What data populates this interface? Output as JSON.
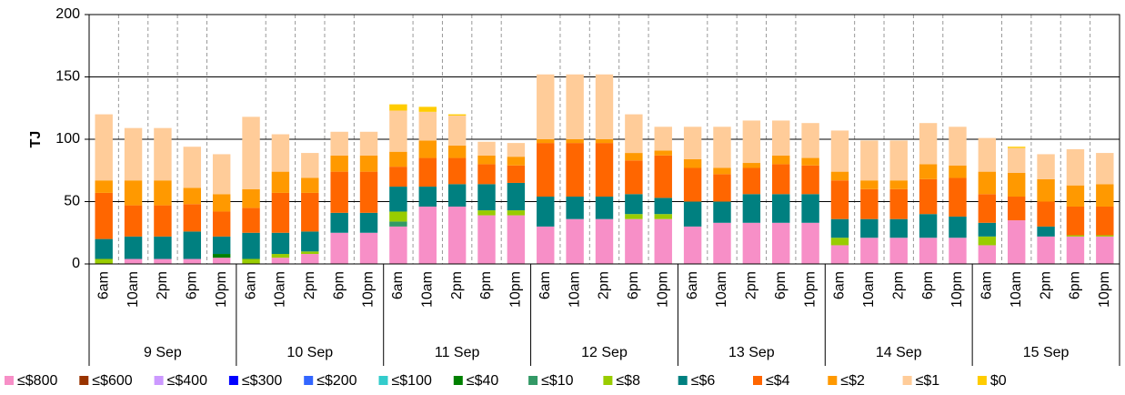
{
  "chart_data": {
    "type": "stacked-bar",
    "y_label": "TJ",
    "categories": [
      "6am",
      "10am",
      "2pm",
      "6pm",
      "10pm",
      "6am",
      "10am",
      "2pm",
      "6pm",
      "10pm",
      "6am",
      "10am",
      "2pm",
      "6pm",
      "10pm",
      "6am",
      "10am",
      "2pm",
      "6pm",
      "10pm",
      "6am",
      "10am",
      "2pm",
      "6pm",
      "10pm",
      "6am",
      "10am",
      "2pm",
      "6pm",
      "10pm",
      "6am",
      "10am",
      "2pm",
      "6pm",
      "10pm"
    ],
    "groups": [
      "9 Sep",
      "10 Sep",
      "11 Sep",
      "12 Sep",
      "13 Sep",
      "14 Sep",
      "15 Sep"
    ],
    "ylim": [
      0,
      200
    ],
    "yticks": [
      0,
      50,
      100,
      150,
      200
    ],
    "grid": true,
    "series": [
      {
        "name": "≤$800",
        "color": "#f78fc7",
        "values": [
          0,
          4,
          4,
          4,
          5,
          0,
          5,
          8,
          25,
          25,
          30,
          46,
          46,
          39,
          39,
          30,
          36,
          36,
          36,
          36,
          30,
          33,
          33,
          33,
          33,
          15,
          21,
          21,
          21,
          21,
          15,
          35,
          22,
          22,
          22
        ]
      },
      {
        "name": "≤$600",
        "color": "#993300",
        "values": [
          0,
          0,
          0,
          0,
          0,
          0,
          0,
          0,
          0,
          0,
          0,
          0,
          0,
          0,
          0,
          0,
          0,
          0,
          0,
          0,
          0,
          0,
          0,
          0,
          0,
          0,
          0,
          0,
          0,
          0,
          0,
          0,
          0,
          0,
          0
        ]
      },
      {
        "name": "≤$400",
        "color": "#cc99ff",
        "values": [
          0,
          0,
          0,
          0,
          0,
          0,
          0,
          0,
          0,
          0,
          0,
          0,
          0,
          0,
          0,
          0,
          0,
          0,
          0,
          0,
          0,
          0,
          0,
          0,
          0,
          0,
          0,
          0,
          0,
          0,
          0,
          0,
          0,
          0,
          0
        ]
      },
      {
        "name": "≤$300",
        "color": "#0000ff",
        "values": [
          0,
          0,
          0,
          0,
          0,
          0,
          0,
          0,
          0,
          0,
          0,
          0,
          0,
          0,
          0,
          0,
          0,
          0,
          0,
          0,
          0,
          0,
          0,
          0,
          0,
          0,
          0,
          0,
          0,
          0,
          0,
          0,
          0,
          0,
          0
        ]
      },
      {
        "name": "≤$200",
        "color": "#3366ff",
        "values": [
          0,
          0,
          0,
          0,
          0,
          0,
          0,
          0,
          0,
          0,
          0,
          0,
          0,
          0,
          0,
          0,
          0,
          0,
          0,
          0,
          0,
          0,
          0,
          0,
          0,
          0,
          0,
          0,
          0,
          0,
          0,
          0,
          0,
          0,
          0
        ]
      },
      {
        "name": "≤$100",
        "color": "#33cccc",
        "values": [
          0,
          0,
          0,
          0,
          0,
          0,
          0,
          0,
          0,
          0,
          0,
          0,
          0,
          0,
          0,
          0,
          0,
          0,
          0,
          0,
          0,
          0,
          0,
          0,
          0,
          0,
          0,
          0,
          0,
          0,
          0,
          0,
          0,
          0,
          0
        ]
      },
      {
        "name": "≤$40",
        "color": "#008000",
        "values": [
          0,
          0,
          0,
          0,
          3,
          0,
          0,
          0,
          0,
          0,
          0,
          0,
          0,
          0,
          0,
          0,
          0,
          0,
          0,
          0,
          0,
          0,
          0,
          0,
          0,
          0,
          0,
          0,
          0,
          0,
          0,
          0,
          0,
          0,
          0
        ]
      },
      {
        "name": "≤$10",
        "color": "#339966",
        "values": [
          0,
          0,
          0,
          0,
          0,
          0,
          0,
          0,
          0,
          0,
          4,
          0,
          0,
          0,
          0,
          0,
          0,
          0,
          0,
          0,
          0,
          0,
          0,
          0,
          0,
          0,
          0,
          0,
          0,
          0,
          0,
          0,
          0,
          0,
          0
        ]
      },
      {
        "name": "≤$8",
        "color": "#99cc00",
        "values": [
          4,
          0,
          0,
          0,
          0,
          4,
          3,
          2,
          0,
          0,
          8,
          0,
          0,
          4,
          4,
          0,
          0,
          0,
          4,
          4,
          0,
          0,
          0,
          0,
          0,
          6,
          0,
          0,
          0,
          0,
          7,
          0,
          0,
          1,
          1
        ]
      },
      {
        "name": "≤$6",
        "color": "#008080",
        "values": [
          16,
          18,
          18,
          22,
          14,
          21,
          17,
          16,
          16,
          16,
          20,
          16,
          18,
          21,
          22,
          24,
          18,
          18,
          16,
          13,
          20,
          17,
          23,
          23,
          23,
          15,
          15,
          15,
          19,
          17,
          11,
          0,
          8,
          0,
          0
        ]
      },
      {
        "name": "≤$4",
        "color": "#ff6600",
        "values": [
          37,
          25,
          25,
          22,
          20,
          20,
          32,
          31,
          33,
          33,
          16,
          23,
          21,
          16,
          14,
          43,
          43,
          43,
          27,
          34,
          27,
          22,
          21,
          24,
          23,
          31,
          24,
          24,
          28,
          31,
          23,
          19,
          20,
          23,
          23
        ]
      },
      {
        "name": "≤$2",
        "color": "#ff9900",
        "values": [
          10,
          20,
          20,
          13,
          14,
          15,
          17,
          12,
          13,
          13,
          12,
          14,
          10,
          7,
          7,
          3,
          3,
          3,
          6,
          4,
          7,
          5,
          4,
          7,
          6,
          7,
          7,
          7,
          12,
          10,
          18,
          19,
          18,
          17,
          18
        ]
      },
      {
        "name": "≤$1",
        "color": "#ffcc99",
        "values": [
          53,
          42,
          42,
          33,
          32,
          58,
          30,
          20,
          19,
          19,
          33,
          23,
          24,
          11,
          11,
          52,
          52,
          52,
          31,
          19,
          26,
          33,
          34,
          28,
          28,
          33,
          32,
          32,
          33,
          31,
          27,
          20,
          20,
          29,
          25
        ]
      },
      {
        "name": "$0",
        "color": "#ffcc00",
        "values": [
          0,
          0,
          0,
          0,
          0,
          0,
          0,
          0,
          0,
          0,
          5,
          4,
          1,
          0,
          0,
          0,
          0,
          0,
          0,
          0,
          0,
          0,
          0,
          0,
          0,
          0,
          0,
          0,
          0,
          0,
          0,
          1,
          0,
          0,
          0
        ]
      }
    ]
  }
}
